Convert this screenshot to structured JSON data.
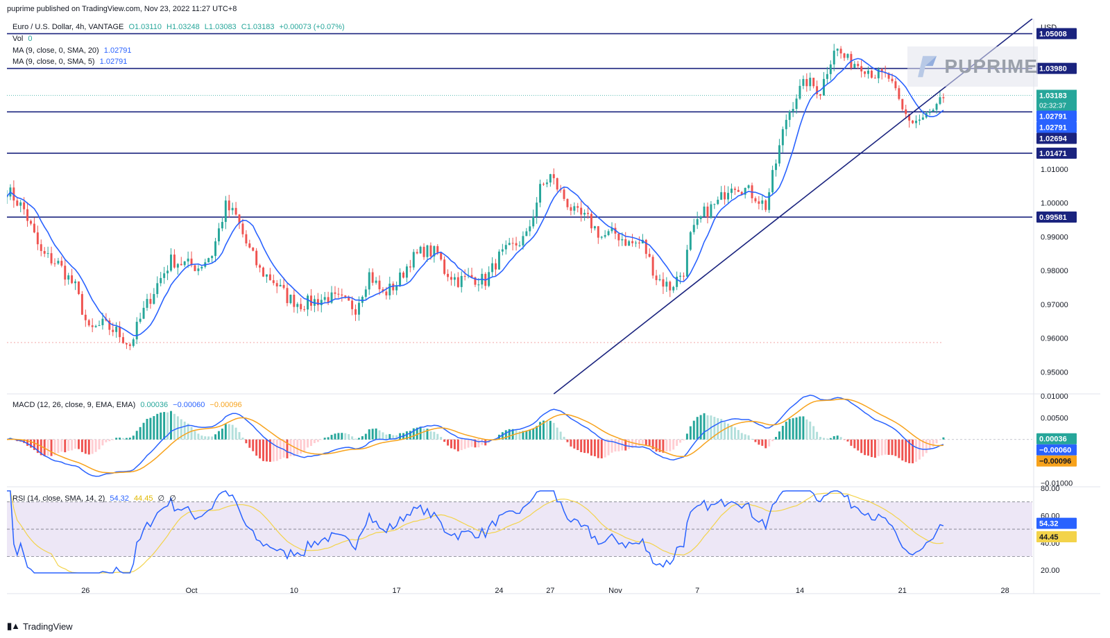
{
  "header": {
    "published": "puprime published on TradingView.com, Nov 23, 2022 11:27 UTC+8"
  },
  "legend": {
    "symbol": "Euro / U.S. Dollar, 4h, VANTAGE",
    "open": "O1.03110",
    "high": "H1.03248",
    "low": "L1.03083",
    "close": "C1.03183",
    "change": "+0.00073 (+0.07%)",
    "vol_label": "Vol",
    "vol_value": "0",
    "ma1_label": "MA (9, close, 0, SMA, 20)",
    "ma1_value": "1.02791",
    "ma2_label": "MA (9, close, 0, SMA, 5)",
    "ma2_value": "1.02791",
    "macd_label": "MACD (12, 26, close, 9, EMA, EMA)",
    "macd_v1": "0.00036",
    "macd_v2": "−0.00060",
    "macd_v3": "−0.00096",
    "rsi_label": "RSI (14, close, SMA, 14, 2)",
    "rsi_v1": "54.32",
    "rsi_v2": "44.45",
    "rsi_v3": "∅",
    "rsi_v4": "∅"
  },
  "watermark": {
    "text": "PUPRIME"
  },
  "footer": {
    "brand": "TradingView"
  },
  "colors": {
    "up": "#26a69a",
    "down": "#ef5350",
    "ma": "#2962ff",
    "hline": "#1a237e",
    "signal": "#f7a21b",
    "rsi": "#2962ff",
    "rsi_ma": "#f3d34a",
    "rsi_band": "#ede7f6",
    "price_tag": "#0d47a1"
  },
  "chart_data": {
    "type": "candlestick",
    "symbol": "EURUSD",
    "timeframe": "4h",
    "currency": "USD",
    "price_axis": {
      "ylim": [
        0.9435,
        1.0545
      ],
      "ticks": [
        {
          "value": 1.01,
          "label": "1.01000"
        },
        {
          "value": 1.0,
          "label": "1.00000"
        },
        {
          "value": 0.99,
          "label": "0.99000"
        },
        {
          "value": 0.98,
          "label": "0.98000"
        },
        {
          "value": 0.97,
          "label": "0.97000"
        },
        {
          "value": 0.96,
          "label": "0.96000"
        },
        {
          "value": 0.95,
          "label": "0.95000"
        }
      ],
      "unit_label": "USD"
    },
    "x_axis": {
      "ticks": [
        {
          "label": "26",
          "index": 23
        },
        {
          "label": "Oct",
          "index": 54
        },
        {
          "label": "10",
          "index": 84
        },
        {
          "label": "17",
          "index": 114
        },
        {
          "label": "24",
          "index": 144
        },
        {
          "label": "27",
          "index": 159
        },
        {
          "label": "Nov",
          "index": 178
        },
        {
          "label": "7",
          "index": 202
        },
        {
          "label": "14",
          "index": 232
        },
        {
          "label": "21",
          "index": 262
        },
        {
          "label": "28",
          "index": 292
        }
      ],
      "last_index": 300
    },
    "horizontal_levels": [
      {
        "value": 1.05008,
        "label": "1.05008"
      },
      {
        "value": 1.0398,
        "label": "1.03980"
      },
      {
        "value": 1.02694,
        "label": "1.02694"
      },
      {
        "value": 1.01471,
        "label": "1.01471"
      },
      {
        "value": 0.99581,
        "label": "0.99581"
      }
    ],
    "trendline": {
      "from": {
        "index": 160,
        "price": 0.9435
      },
      "to": {
        "index": 300,
        "price": 1.0545
      }
    },
    "price_tags": [
      {
        "value": 1.03183,
        "label": "1.03183",
        "sub": "02:32:37",
        "kind": "last"
      },
      {
        "value": 1.02791,
        "label": "1.02791",
        "kind": "ma"
      },
      {
        "value": 1.02791,
        "label": "1.02791",
        "kind": "ma"
      }
    ],
    "anchors": [
      [
        0,
        1.004
      ],
      [
        5,
        0.998
      ],
      [
        10,
        0.985
      ],
      [
        15,
        0.982
      ],
      [
        20,
        0.975
      ],
      [
        24,
        0.962
      ],
      [
        28,
        0.964
      ],
      [
        32,
        0.962
      ],
      [
        36,
        0.958
      ],
      [
        40,
        0.968
      ],
      [
        44,
        0.976
      ],
      [
        48,
        0.983
      ],
      [
        52,
        0.982
      ],
      [
        56,
        0.981
      ],
      [
        60,
        0.985
      ],
      [
        64,
        0.999
      ],
      [
        67,
        0.996
      ],
      [
        70,
        0.988
      ],
      [
        74,
        0.98
      ],
      [
        78,
        0.977
      ],
      [
        82,
        0.972
      ],
      [
        86,
        0.97
      ],
      [
        90,
        0.971
      ],
      [
        94,
        0.972
      ],
      [
        98,
        0.971
      ],
      [
        102,
        0.969
      ],
      [
        106,
        0.979
      ],
      [
        110,
        0.973
      ],
      [
        114,
        0.976
      ],
      [
        118,
        0.983
      ],
      [
        122,
        0.986
      ],
      [
        126,
        0.985
      ],
      [
        128,
        0.98
      ],
      [
        132,
        0.977
      ],
      [
        136,
        0.978
      ],
      [
        140,
        0.977
      ],
      [
        144,
        0.984
      ],
      [
        148,
        0.987
      ],
      [
        152,
        0.99
      ],
      [
        156,
        1.004
      ],
      [
        159,
        1.008
      ],
      [
        162,
        1.003
      ],
      [
        166,
        0.997
      ],
      [
        170,
        0.995
      ],
      [
        174,
        0.99
      ],
      [
        178,
        0.991
      ],
      [
        182,
        0.988
      ],
      [
        186,
        0.988
      ],
      [
        190,
        0.978
      ],
      [
        194,
        0.975
      ],
      [
        198,
        0.98
      ],
      [
        200,
        0.99
      ],
      [
        204,
        0.997
      ],
      [
        208,
        1.0
      ],
      [
        212,
        1.006
      ],
      [
        216,
        1.004
      ],
      [
        219,
        1.002
      ],
      [
        222,
        0.999
      ],
      [
        225,
        1.012
      ],
      [
        228,
        1.025
      ],
      [
        231,
        1.032
      ],
      [
        234,
        1.036
      ],
      [
        238,
        1.033
      ],
      [
        242,
        1.046
      ],
      [
        246,
        1.042
      ],
      [
        250,
        1.041
      ],
      [
        254,
        1.038
      ],
      [
        258,
        1.037
      ],
      [
        262,
        1.027
      ],
      [
        265,
        1.024
      ],
      [
        268,
        1.025
      ],
      [
        271,
        1.027
      ],
      [
        274,
        1.031
      ]
    ],
    "macd": {
      "ylim": [
        -0.0109,
        0.0105
      ],
      "ticks": [
        {
          "value": 0.01,
          "label": "0.01000"
        },
        {
          "value": 0.005,
          "label": "0.00500"
        },
        {
          "value": -0.01,
          "label": "−0.01000"
        }
      ],
      "value_tags": [
        {
          "value": 0.00036,
          "label": "0.00036",
          "kind": "hist"
        },
        {
          "value": -0.0006,
          "label": "−0.00060",
          "kind": "macd"
        },
        {
          "value": -0.00096,
          "label": "−0.00096",
          "kind": "signal"
        }
      ]
    },
    "rsi": {
      "ylim": [
        14,
        81
      ],
      "band": [
        30,
        70
      ],
      "mid": 50,
      "ticks": [
        {
          "value": 80,
          "label": "80.00"
        },
        {
          "value": 60,
          "label": "60.00"
        },
        {
          "value": 40,
          "label": "40.00"
        },
        {
          "value": 20,
          "label": "20.00"
        }
      ],
      "value_tags": [
        {
          "value": 54.32,
          "label": "54.32",
          "kind": "rsi"
        },
        {
          "value": 44.45,
          "label": "44.45",
          "kind": "rsima"
        }
      ]
    }
  }
}
